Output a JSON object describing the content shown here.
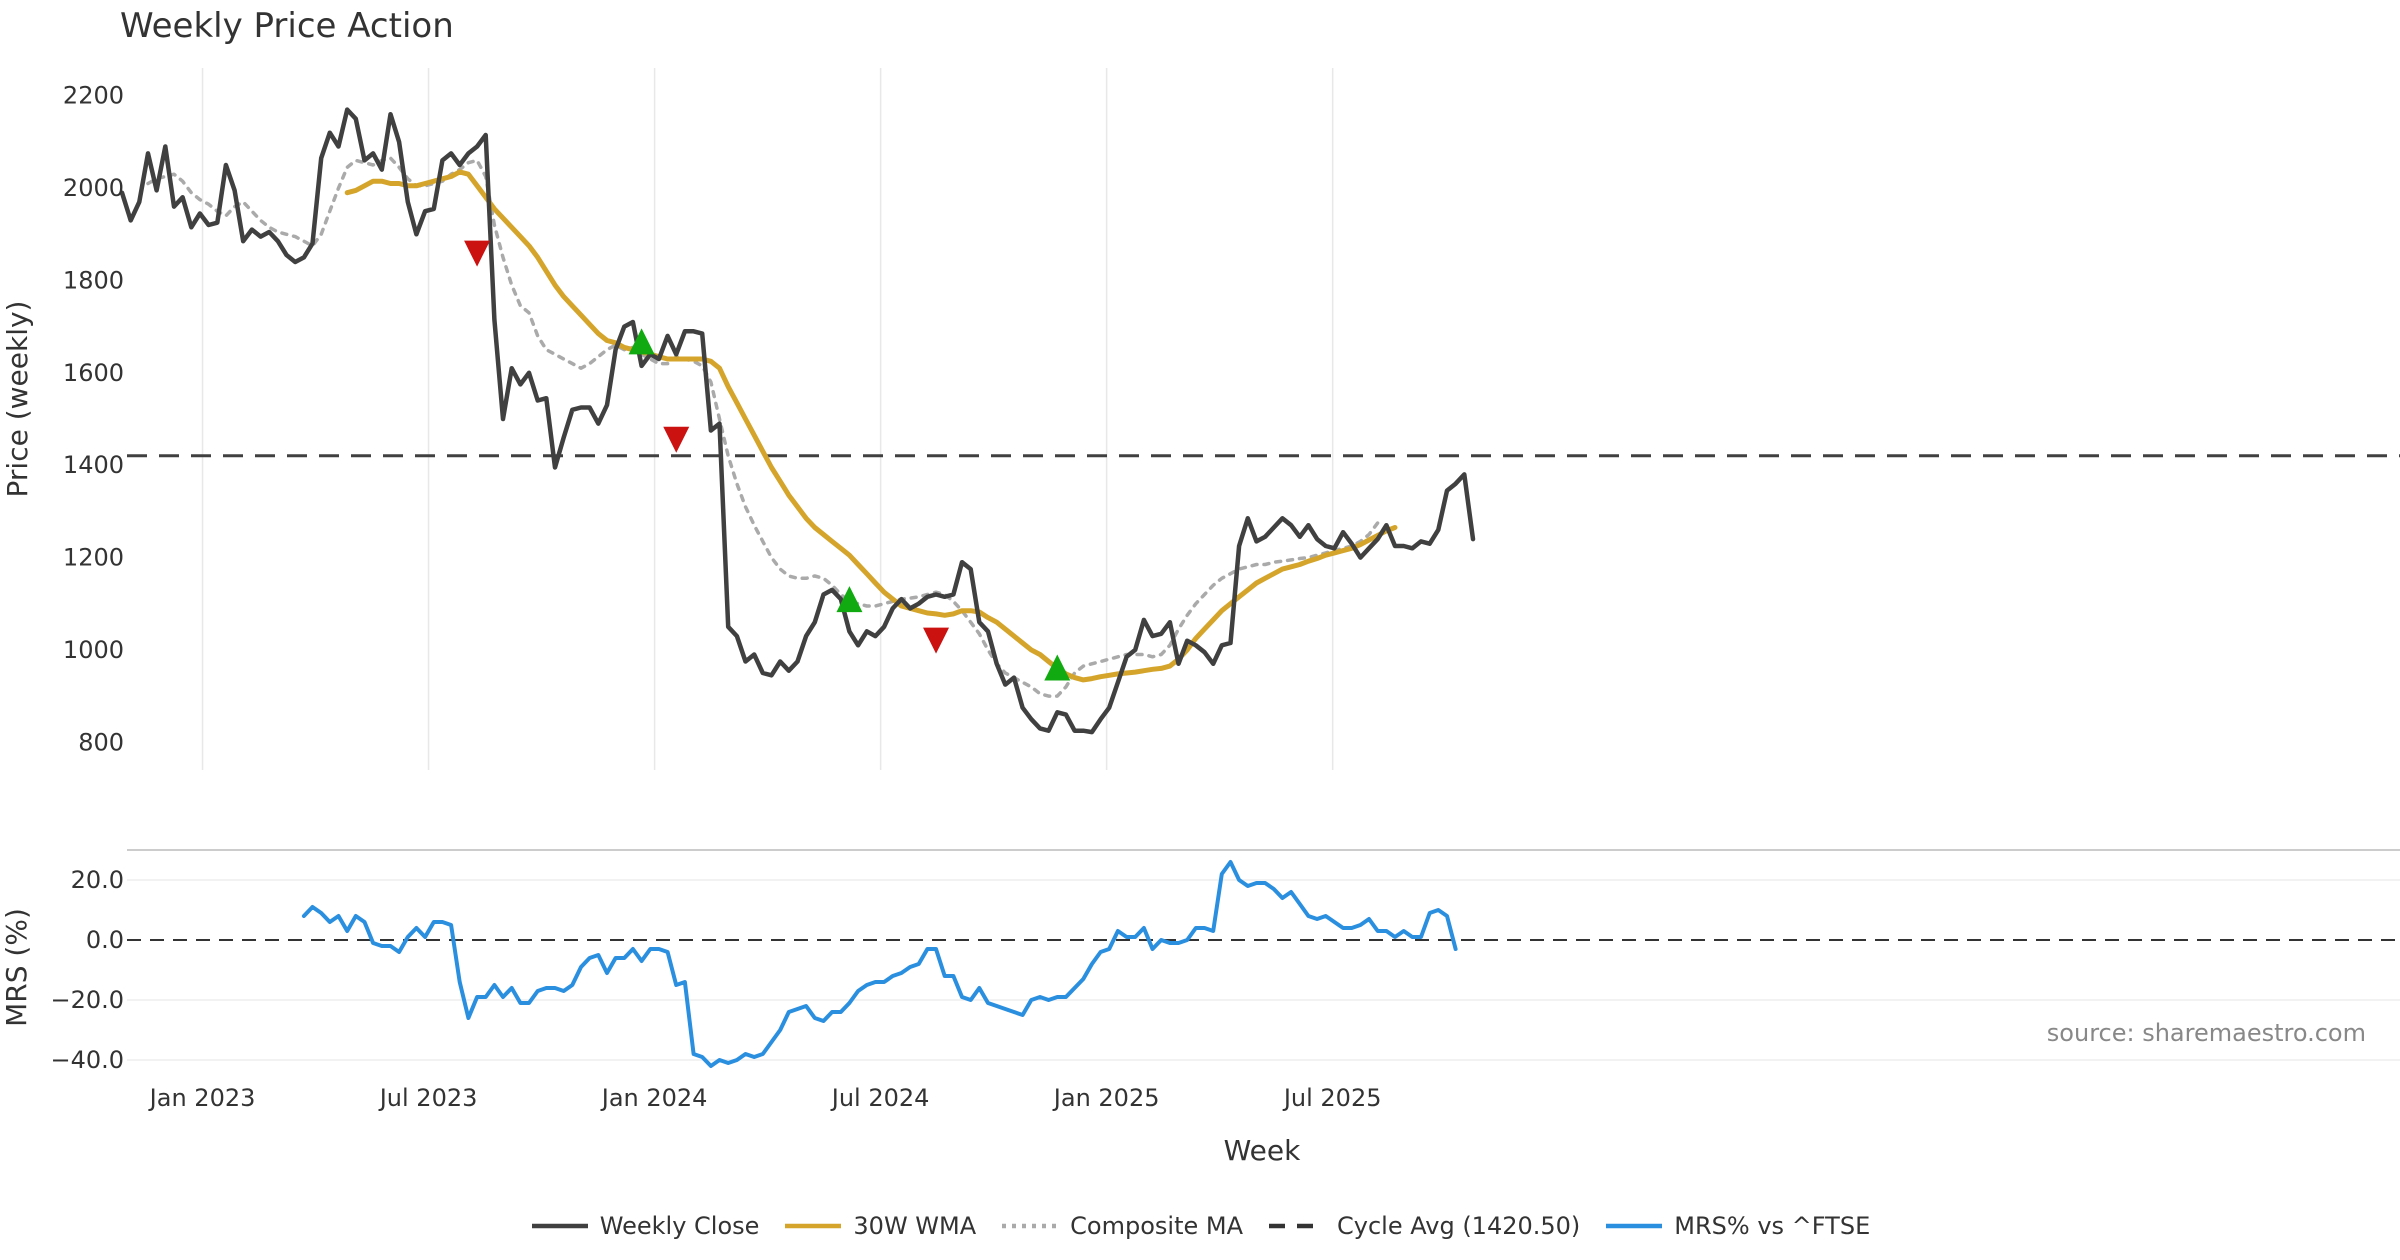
{
  "chart_data": {
    "title": "Weekly Price Action",
    "source": "source: sharemaestro.com",
    "xlabel": "Week",
    "x_ticks": [
      "Jan 2023",
      "Jul 2023",
      "Jan 2024",
      "Jul 2024",
      "Jan 2025",
      "Jul 2025"
    ],
    "x_range_weeks": [
      0,
      150
    ],
    "price_panel": {
      "type": "line",
      "ylabel": "Price (weekly)",
      "ylim": [
        740,
        2260
      ],
      "y_ticks": [
        800,
        1000,
        1200,
        1400,
        1600,
        1800,
        2000,
        2200
      ],
      "cycle_avg": 1420.5,
      "series": [
        {
          "name": "Weekly Close",
          "color": "#404040",
          "style": "solid",
          "start_week": 0,
          "values": [
            1990,
            1930,
            1970,
            2075,
            1995,
            2090,
            1960,
            1980,
            1915,
            1945,
            1920,
            1925,
            2050,
            1995,
            1885,
            1910,
            1895,
            1905,
            1885,
            1855,
            1840,
            1850,
            1880,
            2065,
            2120,
            2090,
            2170,
            2150,
            2060,
            2075,
            2040,
            2160,
            2100,
            1970,
            1900,
            1950,
            1955,
            2060,
            2075,
            2050,
            2075,
            2090,
            2115,
            1715,
            1500,
            1610,
            1575,
            1600,
            1540,
            1545,
            1395,
            1460,
            1520,
            1525,
            1525,
            1490,
            1530,
            1650,
            1700,
            1710,
            1615,
            1640,
            1630,
            1680,
            1640,
            1690,
            1690,
            1685,
            1475,
            1490,
            1050,
            1030,
            975,
            990,
            950,
            945,
            975,
            955,
            975,
            1030,
            1060,
            1120,
            1130,
            1110,
            1040,
            1010,
            1040,
            1030,
            1050,
            1090,
            1110,
            1090,
            1100,
            1115,
            1120,
            1115,
            1120,
            1190,
            1175,
            1060,
            1040,
            970,
            925,
            940,
            875,
            850,
            830,
            825,
            865,
            860,
            825,
            825,
            822,
            850,
            875,
            930,
            985,
            1000,
            1065,
            1030,
            1035,
            1060,
            970,
            1020,
            1010,
            995,
            970,
            1010,
            1015,
            1225,
            1285,
            1235,
            1245,
            1265,
            1285,
            1270,
            1245,
            1270,
            1240,
            1225,
            1220,
            1255,
            1230,
            1200,
            1220,
            1240,
            1270,
            1225,
            1225,
            1220,
            1235,
            1230,
            1260,
            1345,
            1360,
            1380,
            1240
          ]
        },
        {
          "name": "30W WMA",
          "color": "#d4a52a",
          "style": "solid",
          "start_week": 26,
          "values": [
            1990,
            1995,
            2005,
            2015,
            2015,
            2010,
            2010,
            2005,
            2005,
            2010,
            2015,
            2020,
            2025,
            2035,
            2030,
            2005,
            1980,
            1955,
            1935,
            1915,
            1895,
            1875,
            1850,
            1820,
            1790,
            1765,
            1745,
            1725,
            1705,
            1685,
            1670,
            1665,
            1655,
            1650,
            1645,
            1640,
            1635,
            1630,
            1630,
            1630,
            1630,
            1630,
            1625,
            1610,
            1570,
            1535,
            1500,
            1465,
            1430,
            1395,
            1365,
            1335,
            1310,
            1285,
            1265,
            1250,
            1235,
            1220,
            1205,
            1185,
            1165,
            1145,
            1125,
            1110,
            1095,
            1090,
            1085,
            1080,
            1078,
            1075,
            1078,
            1085,
            1085,
            1082,
            1070,
            1060,
            1045,
            1030,
            1015,
            1000,
            990,
            975,
            960,
            948,
            940,
            935,
            938,
            942,
            945,
            948,
            950,
            952,
            955,
            958,
            960,
            965,
            980,
            1000,
            1025,
            1045,
            1065,
            1085,
            1100,
            1115,
            1130,
            1145,
            1155,
            1165,
            1175,
            1180,
            1185,
            1192,
            1198,
            1205,
            1210,
            1215,
            1220,
            1228,
            1238,
            1248,
            1258,
            1265
          ]
        },
        {
          "name": "Composite MA",
          "color": "#aaaaaa",
          "style": "dotted",
          "start_week": 3,
          "values": [
            2010,
            2020,
            2025,
            2030,
            2015,
            1990,
            1975,
            1965,
            1950,
            1940,
            1960,
            1970,
            1950,
            1930,
            1915,
            1905,
            1900,
            1895,
            1885,
            1875,
            1900,
            1950,
            2000,
            2045,
            2060,
            2055,
            2050,
            2060,
            2065,
            2045,
            2020,
            2005,
            2005,
            2010,
            2015,
            2030,
            2040,
            2055,
            2060,
            2025,
            1920,
            1850,
            1790,
            1745,
            1730,
            1680,
            1650,
            1640,
            1630,
            1620,
            1610,
            1620,
            1635,
            1650,
            1660,
            1650,
            1655,
            1640,
            1630,
            1620,
            1620,
            1635,
            1630,
            1625,
            1615,
            1580,
            1500,
            1420,
            1360,
            1310,
            1270,
            1235,
            1200,
            1175,
            1160,
            1155,
            1155,
            1160,
            1155,
            1140,
            1120,
            1105,
            1100,
            1095,
            1095,
            1100,
            1105,
            1110,
            1112,
            1115,
            1120,
            1125,
            1120,
            1105,
            1085,
            1060,
            1035,
            1000,
            970,
            950,
            940,
            930,
            920,
            905,
            900,
            900,
            920,
            950,
            965,
            970,
            975,
            980,
            985,
            990,
            990,
            990,
            985,
            990,
            1010,
            1045,
            1075,
            1100,
            1120,
            1140,
            1155,
            1165,
            1175,
            1180,
            1185,
            1185,
            1190,
            1192,
            1195,
            1198,
            1200,
            1205,
            1210,
            1215,
            1220,
            1225,
            1235,
            1250,
            1275
          ]
        }
      ],
      "signals": [
        {
          "week": 41,
          "price": 1858,
          "type": "sell",
          "color": "#cc1111"
        },
        {
          "week": 60,
          "price": 1668,
          "type": "buy",
          "color": "#11aa11"
        },
        {
          "week": 64,
          "price": 1455,
          "type": "sell",
          "color": "#cc1111"
        },
        {
          "week": 84,
          "price": 1110,
          "type": "buy",
          "color": "#11aa11"
        },
        {
          "week": 94,
          "price": 1020,
          "type": "sell",
          "color": "#cc1111"
        },
        {
          "week": 108,
          "price": 962,
          "type": "buy",
          "color": "#11aa11"
        }
      ]
    },
    "mrs_panel": {
      "type": "line",
      "ylabel": "MRS (%)",
      "ylim": [
        -45,
        30
      ],
      "y_ticks": [
        20.0,
        0.0,
        -20.0,
        -40.0
      ],
      "y_tick_labels": [
        "20.0",
        "0.0",
        "−20.0",
        "−40.0"
      ],
      "series": [
        {
          "name": "MRS% vs ^FTSE",
          "color": "#2b8fe0",
          "style": "solid",
          "start_week": 21,
          "values": [
            8,
            11,
            9,
            6,
            8,
            3,
            8,
            6,
            -1,
            -2,
            -2,
            -4,
            1,
            4,
            1,
            6,
            6,
            5,
            -14,
            -26,
            -19,
            -19,
            -15,
            -19,
            -16,
            -21,
            -21,
            -17,
            -16,
            -16,
            -17,
            -15,
            -9,
            -6,
            -5,
            -11,
            -6,
            -6,
            -3,
            -7,
            -3,
            -3,
            -4,
            -15,
            -14,
            -38,
            -39,
            -42,
            -40,
            -41,
            -40,
            -38,
            -39,
            -38,
            -34,
            -30,
            -24,
            -23,
            -22,
            -26,
            -27,
            -24,
            -24,
            -21,
            -17,
            -15,
            -14,
            -14,
            -12,
            -11,
            -9,
            -8,
            -3,
            -3,
            -12,
            -12,
            -19,
            -20,
            -16,
            -21,
            -22,
            -23,
            -24,
            -25,
            -20,
            -19,
            -20,
            -19,
            -19,
            -16,
            -13,
            -8,
            -4,
            -3,
            3,
            1,
            1,
            4,
            -3,
            0,
            -1,
            -1,
            0,
            4,
            4,
            3,
            22,
            26,
            20,
            18,
            19,
            19,
            17,
            14,
            16,
            12,
            8,
            7,
            8,
            6,
            4,
            4,
            5,
            7,
            3,
            3,
            1,
            3,
            1,
            1,
            9,
            10,
            8,
            -3
          ]
        }
      ]
    },
    "legend": [
      {
        "label": "Weekly Close",
        "color": "#404040",
        "style": "solid"
      },
      {
        "label": "30W WMA",
        "color": "#d4a52a",
        "style": "solid"
      },
      {
        "label": "Composite MA",
        "color": "#aaaaaa",
        "style": "dotted"
      },
      {
        "label": "Cycle Avg (1420.50)",
        "color": "#333333",
        "style": "dashed"
      },
      {
        "label": "MRS% vs ^FTSE",
        "color": "#2b8fe0",
        "style": "solid"
      }
    ]
  }
}
